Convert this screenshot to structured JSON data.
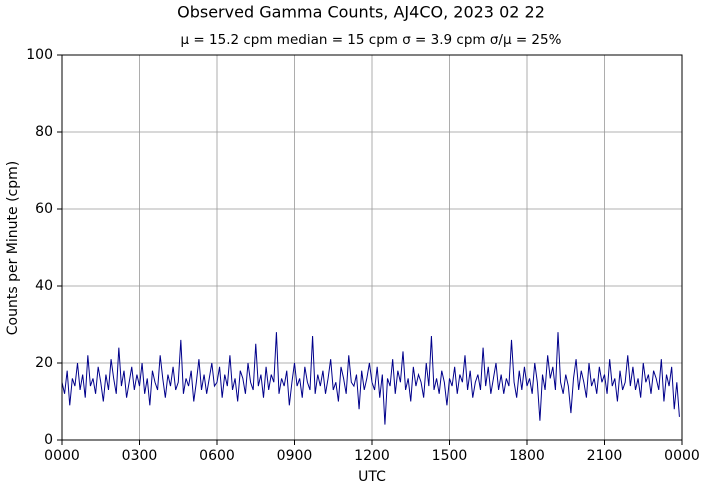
{
  "chart_data": {
    "type": "line",
    "title": "Observed Gamma Counts, AJ4CO, 2023 02 22",
    "subtitle": "μ = 15.2 cpm      median = 15 cpm      σ = 3.9 cpm      σ/μ = 25%",
    "x_label": "UTC",
    "y_label": "Counts per Minute (cpm)",
    "xlim": [
      0,
      1440
    ],
    "ylim": [
      0,
      100
    ],
    "xticks": [
      {
        "value": 0,
        "label": "0000"
      },
      {
        "value": 180,
        "label": "0300"
      },
      {
        "value": 360,
        "label": "0600"
      },
      {
        "value": 540,
        "label": "0900"
      },
      {
        "value": 720,
        "label": "1200"
      },
      {
        "value": 900,
        "label": "1500"
      },
      {
        "value": 1080,
        "label": "1800"
      },
      {
        "value": 1260,
        "label": "2100"
      },
      {
        "value": 1440,
        "label": "0000"
      }
    ],
    "yticks": [
      0,
      20,
      40,
      60,
      80,
      100
    ],
    "grid": true,
    "series": [
      {
        "color": "#00008b",
        "x": [
          0,
          6,
          12,
          18,
          24,
          30,
          36,
          42,
          48,
          54,
          60,
          66,
          72,
          78,
          84,
          90,
          96,
          102,
          108,
          114,
          120,
          126,
          132,
          138,
          144,
          150,
          156,
          162,
          168,
          174,
          180,
          186,
          192,
          198,
          204,
          210,
          216,
          222,
          228,
          234,
          240,
          246,
          252,
          258,
          264,
          270,
          276,
          282,
          288,
          294,
          300,
          306,
          312,
          318,
          324,
          330,
          336,
          342,
          348,
          354,
          360,
          366,
          372,
          378,
          384,
          390,
          396,
          402,
          408,
          414,
          420,
          426,
          432,
          438,
          444,
          450,
          456,
          462,
          468,
          474,
          480,
          486,
          492,
          498,
          504,
          510,
          516,
          522,
          528,
          534,
          540,
          546,
          552,
          558,
          564,
          570,
          576,
          582,
          588,
          594,
          600,
          606,
          612,
          618,
          624,
          630,
          636,
          642,
          648,
          654,
          660,
          666,
          672,
          678,
          684,
          690,
          696,
          702,
          708,
          714,
          720,
          726,
          732,
          738,
          744,
          750,
          756,
          762,
          768,
          774,
          780,
          786,
          792,
          798,
          804,
          810,
          816,
          822,
          828,
          834,
          840,
          846,
          852,
          858,
          864,
          870,
          876,
          882,
          888,
          894,
          900,
          906,
          912,
          918,
          924,
          930,
          936,
          942,
          948,
          954,
          960,
          966,
          972,
          978,
          984,
          990,
          996,
          1002,
          1008,
          1014,
          1020,
          1026,
          1032,
          1038,
          1044,
          1050,
          1056,
          1062,
          1068,
          1074,
          1080,
          1086,
          1092,
          1098,
          1104,
          1110,
          1116,
          1122,
          1128,
          1134,
          1140,
          1146,
          1152,
          1158,
          1164,
          1170,
          1176,
          1182,
          1188,
          1194,
          1200,
          1206,
          1212,
          1218,
          1224,
          1230,
          1236,
          1242,
          1248,
          1254,
          1260,
          1266,
          1272,
          1278,
          1284,
          1290,
          1296,
          1302,
          1308,
          1314,
          1320,
          1326,
          1332,
          1338,
          1344,
          1350,
          1356,
          1362,
          1368,
          1374,
          1380,
          1386,
          1392,
          1398,
          1404,
          1410,
          1416,
          1422,
          1428,
          1434
        ],
        "values": [
          15,
          12,
          18,
          9,
          16,
          14,
          20,
          13,
          17,
          11,
          22,
          14,
          16,
          12,
          19,
          15,
          10,
          17,
          13,
          21,
          16,
          12,
          24,
          14,
          18,
          11,
          15,
          19,
          13,
          17,
          14,
          20,
          12,
          16,
          9,
          18,
          15,
          13,
          22,
          16,
          11,
          17,
          14,
          19,
          13,
          15,
          26,
          12,
          16,
          14,
          18,
          10,
          15,
          21,
          13,
          17,
          12,
          16,
          20,
          14,
          15,
          19,
          11,
          17,
          14,
          22,
          13,
          16,
          10,
          18,
          16,
          12,
          20,
          15,
          13,
          25,
          14,
          17,
          11,
          19,
          13,
          17,
          15,
          28,
          12,
          16,
          14,
          18,
          9,
          15,
          20,
          14,
          16,
          11,
          19,
          15,
          13,
          27,
          12,
          17,
          14,
          18,
          12,
          16,
          21,
          13,
          15,
          10,
          19,
          16,
          12,
          22,
          15,
          14,
          17,
          8,
          18,
          13,
          16,
          20,
          15,
          13,
          19,
          11,
          17,
          4,
          16,
          14,
          21,
          12,
          18,
          15,
          23,
          13,
          16,
          10,
          19,
          14,
          17,
          15,
          11,
          20,
          14,
          27,
          13,
          16,
          12,
          18,
          15,
          9,
          16,
          14,
          19,
          12,
          17,
          15,
          22,
          13,
          18,
          11,
          15,
          17,
          13,
          24,
          14,
          19,
          12,
          16,
          20,
          13,
          17,
          12,
          16,
          14,
          26,
          15,
          11,
          18,
          13,
          19,
          14,
          16,
          12,
          20,
          15,
          5,
          17,
          13,
          22,
          16,
          19,
          13,
          28,
          15,
          12,
          17,
          14,
          7,
          16,
          21,
          13,
          18,
          15,
          11,
          20,
          14,
          16,
          12,
          19,
          15,
          17,
          12,
          21,
          14,
          16,
          10,
          18,
          13,
          15,
          22,
          14,
          19,
          13,
          16,
          11,
          20,
          15,
          17,
          12,
          18,
          16,
          13,
          21,
          10,
          17,
          14,
          19,
          8,
          15,
          6
        ]
      }
    ]
  }
}
